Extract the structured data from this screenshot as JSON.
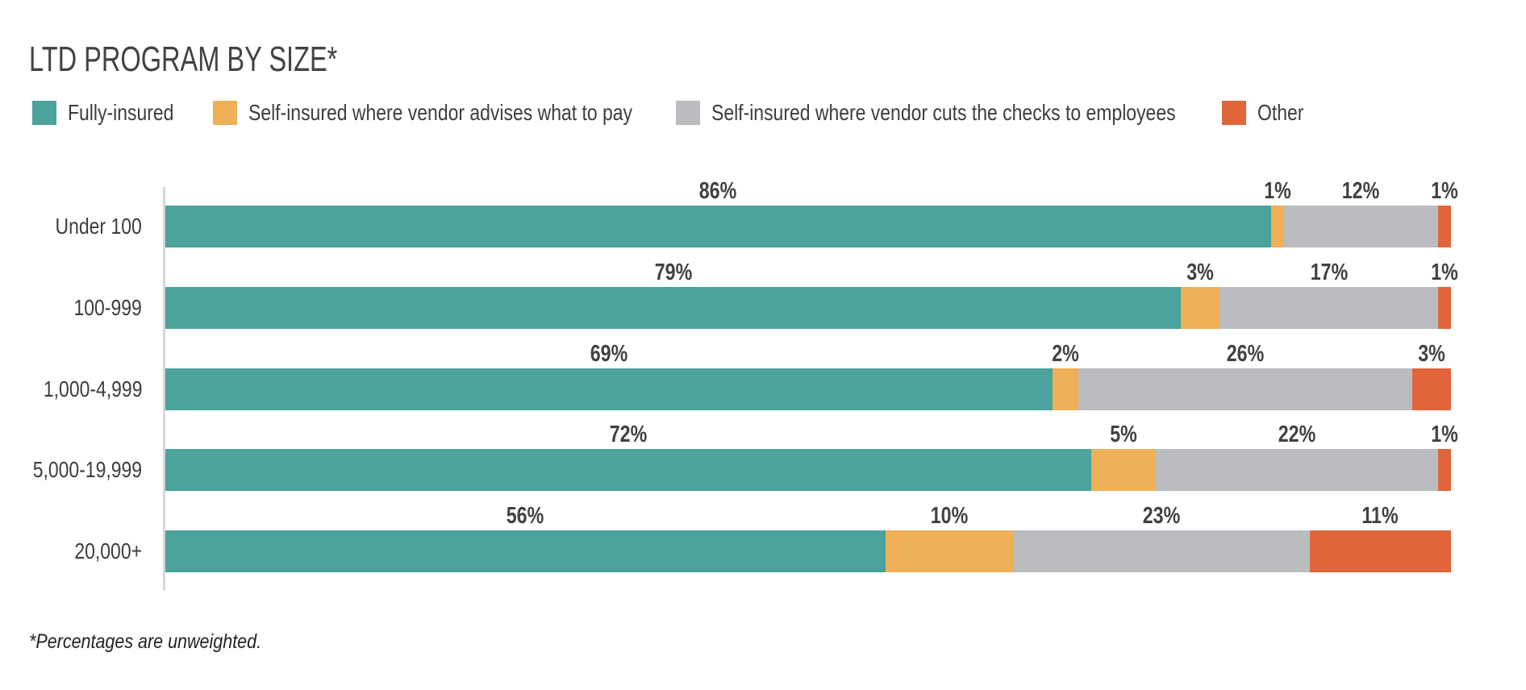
{
  "chart_data": {
    "type": "bar",
    "orientation": "horizontal",
    "stacked": true,
    "title": "LTD PROGRAM BY SIZE*",
    "footnote": "*Percentages are unweighted.",
    "xlabel": "",
    "ylabel": "",
    "xlim": [
      0,
      100
    ],
    "grid": false,
    "legend_position": "top-left",
    "categories": [
      "Under 100",
      "100-999",
      "1,000-4,999",
      "5,000-19,999",
      "20,000+"
    ],
    "series": [
      {
        "name": "Fully-insured",
        "color": "#4ba39c",
        "values": [
          86,
          79,
          69,
          72,
          56
        ],
        "labels": [
          "86%",
          "79%",
          "69%",
          "72%",
          "56%"
        ]
      },
      {
        "name": "Self-insured where vendor advises what to pay",
        "color": "#f0b057",
        "values": [
          1,
          3,
          2,
          5,
          10
        ],
        "labels": [
          "1%",
          "3%",
          "2%",
          "5%",
          "10%"
        ]
      },
      {
        "name": "Self-insured where vendor cuts the checks to employees",
        "color": "#bbbcbf",
        "values": [
          12,
          17,
          26,
          22,
          23
        ],
        "labels": [
          "12%",
          "17%",
          "26%",
          "22%",
          "23%"
        ]
      },
      {
        "name": "Other",
        "color": "#e0653a",
        "values": [
          1,
          1,
          3,
          1,
          11
        ],
        "labels": [
          "1%",
          "1%",
          "3%",
          "1%",
          "11%"
        ]
      }
    ]
  }
}
